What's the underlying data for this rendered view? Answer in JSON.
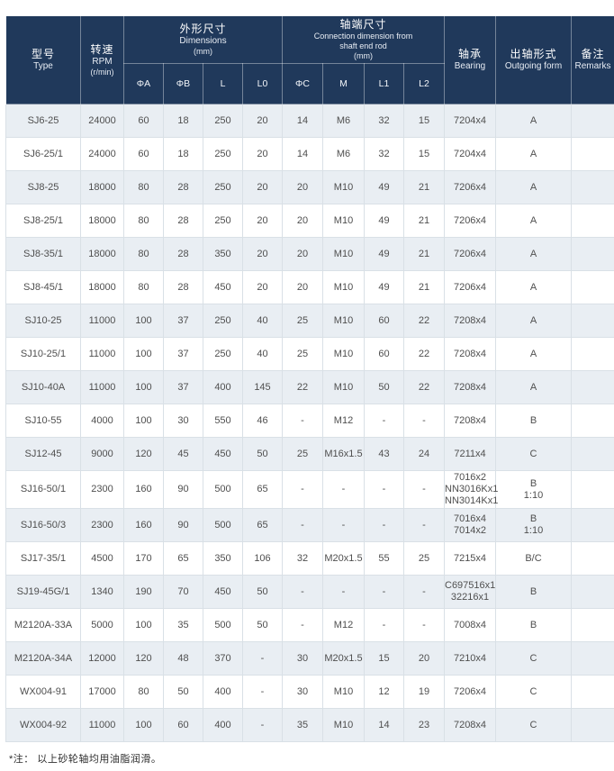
{
  "table": {
    "header": {
      "type": {
        "zh": "型号",
        "en": "Type"
      },
      "rpm": {
        "zh": "转速",
        "en": "RPM",
        "unit": "(r/min)"
      },
      "dimensions": {
        "zh": "外形尺寸",
        "en": "Dimensions",
        "unit": "(mm)",
        "sub": [
          "ΦA",
          "ΦB",
          "L",
          "L0"
        ]
      },
      "connection": {
        "zh": "轴端尺寸",
        "en_line1": "Connection dimension from",
        "en_line2": "shaft end rod",
        "unit": "(mm)",
        "sub": [
          "ΦC",
          "M",
          "L1",
          "L2"
        ]
      },
      "bearing": {
        "zh": "轴承",
        "en": "Bearing"
      },
      "outgoing": {
        "zh": "出轴形式",
        "en": "Outgoing form"
      },
      "remarks": {
        "zh": "备注",
        "en": "Remarks"
      }
    },
    "rows": [
      [
        "SJ6-25",
        "24000",
        "60",
        "18",
        "250",
        "20",
        "14",
        "M6",
        "32",
        "15",
        "7204x4",
        "A",
        ""
      ],
      [
        "SJ6-25/1",
        "24000",
        "60",
        "18",
        "250",
        "20",
        "14",
        "M6",
        "32",
        "15",
        "7204x4",
        "A",
        ""
      ],
      [
        "SJ8-25",
        "18000",
        "80",
        "28",
        "250",
        "20",
        "20",
        "M10",
        "49",
        "21",
        "7206x4",
        "A",
        ""
      ],
      [
        "SJ8-25/1",
        "18000",
        "80",
        "28",
        "250",
        "20",
        "20",
        "M10",
        "49",
        "21",
        "7206x4",
        "A",
        ""
      ],
      [
        "SJ8-35/1",
        "18000",
        "80",
        "28",
        "350",
        "20",
        "20",
        "M10",
        "49",
        "21",
        "7206x4",
        "A",
        ""
      ],
      [
        "SJ8-45/1",
        "18000",
        "80",
        "28",
        "450",
        "20",
        "20",
        "M10",
        "49",
        "21",
        "7206x4",
        "A",
        ""
      ],
      [
        "SJ10-25",
        "11000",
        "100",
        "37",
        "250",
        "40",
        "25",
        "M10",
        "60",
        "22",
        "7208x4",
        "A",
        ""
      ],
      [
        "SJ10-25/1",
        "11000",
        "100",
        "37",
        "250",
        "40",
        "25",
        "M10",
        "60",
        "22",
        "7208x4",
        "A",
        ""
      ],
      [
        "SJ10-40A",
        "11000",
        "100",
        "37",
        "400",
        "145",
        "22",
        "M10",
        "50",
        "22",
        "7208x4",
        "A",
        ""
      ],
      [
        "SJ10-55",
        "4000",
        "100",
        "30",
        "550",
        "46",
        "-",
        "M12",
        "-",
        "-",
        "7208x4",
        "B",
        ""
      ],
      [
        "SJ12-45",
        "9000",
        "120",
        "45",
        "450",
        "50",
        "25",
        "M16x1.5",
        "43",
        "24",
        "7211x4",
        "C",
        ""
      ],
      [
        "SJ16-50/1",
        "2300",
        "160",
        "90",
        "500",
        "65",
        "-",
        "-",
        "-",
        "-",
        "7016x2\nNN3016Kx1\nNN3014Kx1",
        "B\n1:10",
        ""
      ],
      [
        "SJ16-50/3",
        "2300",
        "160",
        "90",
        "500",
        "65",
        "-",
        "-",
        "-",
        "-",
        "7016x4\n7014x2",
        "B\n1:10",
        ""
      ],
      [
        "SJ17-35/1",
        "4500",
        "170",
        "65",
        "350",
        "106",
        "32",
        "M20x1.5",
        "55",
        "25",
        "7215x4",
        "B/C",
        ""
      ],
      [
        "SJ19-45G/1",
        "1340",
        "190",
        "70",
        "450",
        "50",
        "-",
        "-",
        "-",
        "-",
        "C697516x1\n32216x1",
        "B",
        ""
      ],
      [
        "M2120A-33A",
        "5000",
        "100",
        "35",
        "500",
        "50",
        "-",
        "M12",
        "-",
        "-",
        "7008x4",
        "B",
        ""
      ],
      [
        "M2120A-34A",
        "12000",
        "120",
        "48",
        "370",
        "-",
        "30",
        "M20x1.5",
        "15",
        "20",
        "7210x4",
        "C",
        ""
      ],
      [
        "WX004-91",
        "17000",
        "80",
        "50",
        "400",
        "-",
        "30",
        "M10",
        "12",
        "19",
        "7206x4",
        "C",
        ""
      ],
      [
        "WX004-92",
        "11000",
        "100",
        "60",
        "400",
        "-",
        "35",
        "M10",
        "14",
        "23",
        "7208x4",
        "C",
        ""
      ]
    ]
  },
  "footnote": "*注： 以上砂轮轴均用油脂润滑。",
  "colors": {
    "header_bg": "#20395b",
    "row_alt_bg": "#e9eef3",
    "row_bg": "#ffffff",
    "cell_border": "#d9e0e6"
  }
}
